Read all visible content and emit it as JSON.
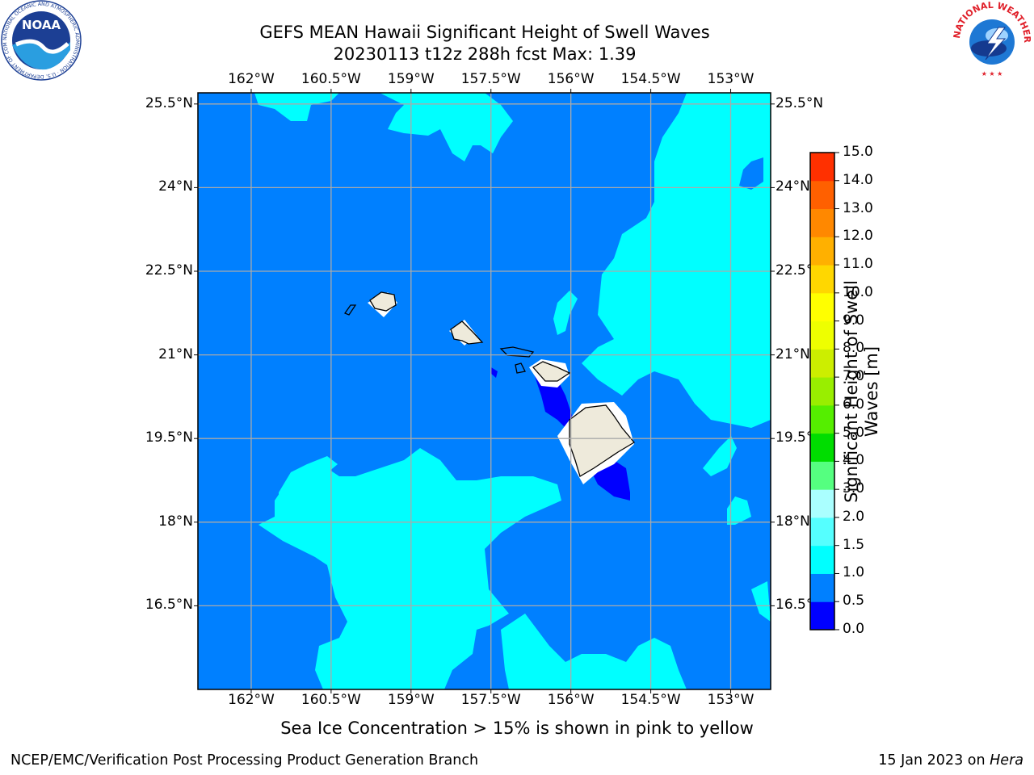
{
  "header": {
    "title_line1": "GEFS MEAN Hawaii Significant Height of Swell Waves",
    "title_line2": "20230113 t12z 288h fcst   Max: 1.39"
  },
  "map": {
    "lon_labels": [
      "162°W",
      "160.5°W",
      "159°W",
      "157.5°W",
      "156°W",
      "154.5°W",
      "153°W"
    ],
    "lat_labels": [
      "25.5°N",
      "24°N",
      "22.5°N",
      "21°N",
      "19.5°N",
      "18°N",
      "16.5°N"
    ],
    "lon_values": [
      -162,
      -160.5,
      -159,
      -157.5,
      -156,
      -154.5,
      -153
    ],
    "lat_values": [
      25.5,
      24,
      22.5,
      21,
      19.5,
      18,
      16.5
    ],
    "extent": {
      "lon_min": -163,
      "lon_max": -152.25,
      "lat_min": 15,
      "lat_max": 25.7
    },
    "colors": {
      "deep": "#0000ff",
      "base": "#0080ff",
      "shallow": "#00ffff",
      "land": "#eeeadb",
      "grid": "#aaaaaa"
    }
  },
  "colorbar": {
    "label": "Significant Height of Swell Waves [m]",
    "label_line1": "Significant Height of Swell",
    "label_line2": "Waves [m]",
    "ticks": [
      "0.0",
      "0.5",
      "1.0",
      "1.5",
      "2.0",
      "3.0",
      "4.0",
      "5.0",
      "6.0",
      "7.0",
      "8.0",
      "9.0",
      "10.0",
      "11.0",
      "12.0",
      "13.0",
      "14.0",
      "15.0"
    ],
    "colors": [
      "#0000ff",
      "#0080ff",
      "#00ffff",
      "#55ffff",
      "#aaffff",
      "#55ff80",
      "#00dd00",
      "#55ee00",
      "#99ee00",
      "#ccee00",
      "#eeff00",
      "#ffff00",
      "#ffd700",
      "#ffb000",
      "#ff8800",
      "#ff6000",
      "#ff3000",
      "#ff0000"
    ]
  },
  "footer": {
    "ice_note": "Sea Ice Concentration > 15% is shown in pink to yellow",
    "credit": "NCEP/EMC/Verification Post Processing Product Generation Branch",
    "date_prefix": "15 Jan 2023 on ",
    "date_machine": "Hera"
  },
  "logos": {
    "noaa": {
      "text": "NOAA",
      "ring_text": "NATIONAL OCEANIC AND ATMOSPHERIC ADMINISTRATION · U.S. DEPARTMENT OF COMMERCE"
    },
    "nws": {
      "ring_text": "NATIONAL WEATHER SERVICE"
    }
  }
}
